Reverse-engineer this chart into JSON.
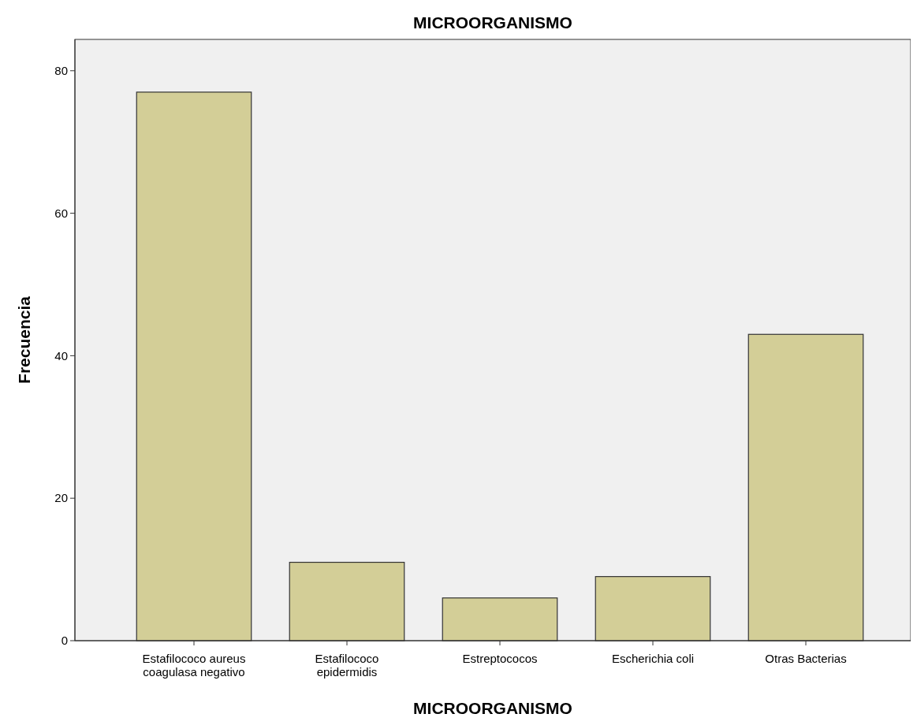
{
  "chart_data": {
    "type": "bar",
    "title": "MICROORGANISMO",
    "xlabel": "MICROORGANISMO",
    "ylabel": "Frecuencia",
    "categories": [
      "Estafilococo aureus coagulasa negativo",
      "Estafilococo epidermidis",
      "Estreptococos",
      "Escherichia coli",
      "Otras Bacterias"
    ],
    "values": [
      77,
      11,
      6,
      9,
      43
    ],
    "color": "#d3ce97",
    "ylim": [
      0,
      84.4
    ],
    "yticks": [
      0,
      20,
      40,
      60,
      80
    ],
    "grid": false
  }
}
